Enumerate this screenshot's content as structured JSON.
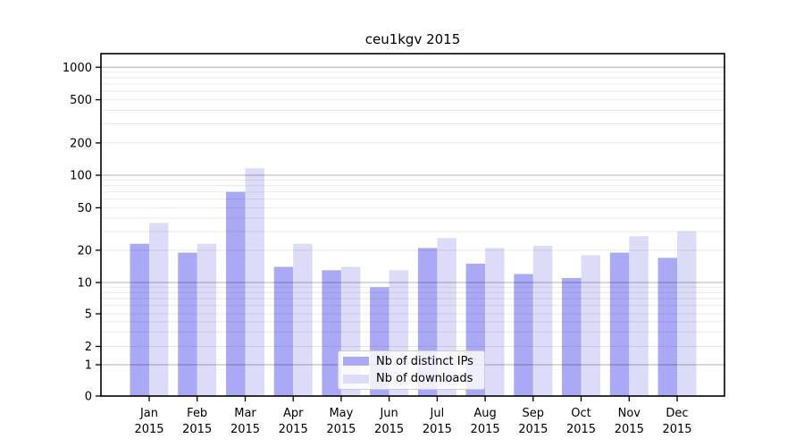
{
  "chart_data": {
    "type": "bar",
    "title": "ceu1kgv 2015",
    "categories": [
      "Jan",
      "Feb",
      "Mar",
      "Apr",
      "May",
      "Jun",
      "Jul",
      "Aug",
      "Sep",
      "Oct",
      "Nov",
      "Dec"
    ],
    "category_sublabel": "2015",
    "series": [
      {
        "name": "Nb of distinct IPs",
        "color": "#a9a9f5",
        "values": [
          23,
          19,
          70,
          14,
          13,
          9,
          21,
          15,
          12,
          11,
          19,
          17
        ]
      },
      {
        "name": "Nb of downloads",
        "color": "#dcdcf9",
        "values": [
          36,
          23,
          116,
          23,
          14,
          13,
          26,
          21,
          22,
          18,
          27,
          30
        ]
      }
    ],
    "xlabel": "",
    "ylabel": "",
    "yscale": "log-like with zero baseline",
    "ytick_labels": [
      "0",
      "1",
      "2",
      "5",
      "10",
      "20",
      "50",
      "100",
      "200",
      "500",
      "1000"
    ],
    "ytick_values": [
      0,
      1,
      2,
      5,
      10,
      20,
      50,
      100,
      200,
      500,
      1000
    ],
    "ylim": [
      0,
      1400
    ],
    "grid": {
      "on": true,
      "major_color": "#b3b3b3",
      "minor_color": "#e9e9e9",
      "drawn_over_bars": true
    },
    "legend_position": "lower center inside plot",
    "axis_color": "#000000",
    "background": "#ffffff"
  }
}
